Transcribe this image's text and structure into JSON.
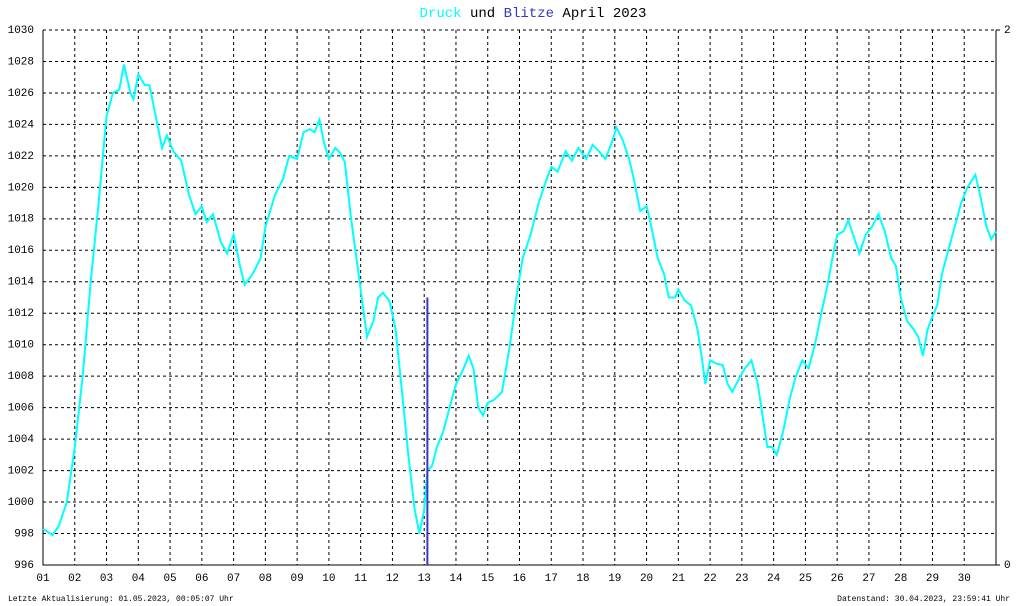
{
  "chart_data": {
    "type": "line",
    "title": [
      "Druck",
      "und",
      "Blitze",
      "April 2023"
    ],
    "footer_left": "Letzte Aktualisierung: 01.05.2023, 00:05:07 Uhr",
    "footer_right": "Datenstand: 30.04.2023, 23:59:41 Uhr",
    "xlim": [
      1,
      31
    ],
    "xticks": [
      {
        "value": 1,
        "label": "01"
      },
      {
        "value": 2,
        "label": "02"
      },
      {
        "value": 3,
        "label": "03"
      },
      {
        "value": 4,
        "label": "04"
      },
      {
        "value": 5,
        "label": "05"
      },
      {
        "value": 6,
        "label": "06"
      },
      {
        "value": 7,
        "label": "07"
      },
      {
        "value": 8,
        "label": "08"
      },
      {
        "value": 9,
        "label": "09"
      },
      10,
      11,
      12,
      13,
      14,
      15,
      16,
      17,
      18,
      19,
      20,
      21,
      22,
      23,
      24,
      25,
      26,
      27,
      28,
      29,
      30
    ],
    "ylim": [
      996,
      1030
    ],
    "yticks": [
      996,
      998,
      1000,
      1002,
      1004,
      1006,
      1008,
      1010,
      1012,
      1014,
      1016,
      1018,
      1020,
      1022,
      1024,
      1026,
      1028,
      1030
    ],
    "y2lim": [
      0,
      2
    ],
    "y2ticks": [
      0,
      2
    ],
    "grid": true,
    "series": [
      {
        "name": "Druck",
        "color": "#00ffff",
        "type": "line",
        "x": [
          1.0,
          1.3,
          1.5,
          1.75,
          2.0,
          2.25,
          2.5,
          2.75,
          3.0,
          3.2,
          3.4,
          3.55,
          3.75,
          3.85,
          4.0,
          4.2,
          4.35,
          4.5,
          4.75,
          4.9,
          5.1,
          5.35,
          5.6,
          5.8,
          6.0,
          6.15,
          6.35,
          6.6,
          6.8,
          7.0,
          7.2,
          7.35,
          7.6,
          7.85,
          8.0,
          8.3,
          8.55,
          8.75,
          9.0,
          9.2,
          9.4,
          9.55,
          9.7,
          9.85,
          10.0,
          10.2,
          10.35,
          10.5,
          10.7,
          10.9,
          11.1,
          11.2,
          11.4,
          11.55,
          11.7,
          11.9,
          12.1,
          12.3,
          12.5,
          12.7,
          12.85,
          13.0,
          13.1,
          13.25,
          13.4,
          13.6,
          13.8,
          14.0,
          14.2,
          14.4,
          14.55,
          14.7,
          14.85,
          15.0,
          15.2,
          15.45,
          15.7,
          15.9,
          16.1,
          16.35,
          16.6,
          16.85,
          17.0,
          17.2,
          17.45,
          17.65,
          17.85,
          18.1,
          18.3,
          18.5,
          18.7,
          18.9,
          19.05,
          19.25,
          19.45,
          19.6,
          19.8,
          20.0,
          20.15,
          20.35,
          20.55,
          20.7,
          20.9,
          21.0,
          21.2,
          21.4,
          21.6,
          21.75,
          21.85,
          22.0,
          22.2,
          22.4,
          22.55,
          22.7,
          22.9,
          23.1,
          23.3,
          23.5,
          23.65,
          23.8,
          23.95,
          24.1,
          24.3,
          24.5,
          24.7,
          24.9,
          25.1,
          25.3,
          25.5,
          25.7,
          25.85,
          26.0,
          26.2,
          26.35,
          26.5,
          26.7,
          26.9,
          27.1,
          27.3,
          27.5,
          27.7,
          27.85,
          28.0,
          28.2,
          28.4,
          28.55,
          28.7,
          28.85,
          29.0,
          29.15,
          29.3,
          29.5,
          29.7,
          29.9,
          30.1,
          30.35,
          30.5,
          30.7,
          30.85,
          31.0
        ],
        "values": [
          998.3,
          997.9,
          998.5,
          1000,
          1003.5,
          1008,
          1014,
          1019,
          1024.5,
          1026,
          1026.2,
          1027.8,
          1026,
          1025.6,
          1027.2,
          1026.5,
          1026.5,
          1025,
          1022.5,
          1023.3,
          1022.3,
          1021.7,
          1019.5,
          1018.3,
          1018.8,
          1017.8,
          1018.3,
          1016.5,
          1015.8,
          1017,
          1015,
          1013.8,
          1014.5,
          1015.5,
          1017.5,
          1019.5,
          1020.5,
          1022,
          1021.8,
          1023.5,
          1023.7,
          1023.5,
          1024.3,
          1022.8,
          1021.8,
          1022.5,
          1022.2,
          1021.6,
          1018,
          1015,
          1012,
          1010.5,
          1011.5,
          1013,
          1013.3,
          1012.8,
          1011,
          1007,
          1003,
          999.5,
          998,
          999.5,
          1002,
          1002.3,
          1003.5,
          1004.5,
          1006,
          1007.5,
          1008.3,
          1009.3,
          1008.5,
          1006,
          1005.5,
          1006.3,
          1006.5,
          1007,
          1010,
          1013,
          1015.5,
          1017,
          1019,
          1020.5,
          1021.3,
          1021,
          1022.3,
          1021.7,
          1022.5,
          1021.8,
          1022.7,
          1022.3,
          1021.8,
          1022.8,
          1023.8,
          1023,
          1021.8,
          1020.5,
          1018.5,
          1018.8,
          1017.5,
          1015.5,
          1014.5,
          1013,
          1013,
          1013.5,
          1012.8,
          1012.5,
          1011,
          1009,
          1007.5,
          1009,
          1008.8,
          1008.7,
          1007.5,
          1007,
          1007.8,
          1008.5,
          1009,
          1007.5,
          1005.5,
          1003.5,
          1003.5,
          1003,
          1004.5,
          1006.5,
          1008,
          1009,
          1008.5,
          1010,
          1012,
          1013.8,
          1015.5,
          1017,
          1017.2,
          1017.9,
          1017,
          1015.8,
          1017,
          1017.5,
          1018.3,
          1017.2,
          1015.5,
          1015,
          1013,
          1011.5,
          1011,
          1010.5,
          1009.3,
          1011,
          1011.8,
          1012.5,
          1014.5,
          1016,
          1017.5,
          1019,
          1020,
          1020.8,
          1019.5,
          1017.5,
          1016.7,
          1017.2
        ]
      },
      {
        "name": "Blitze",
        "color": "#3838c8",
        "type": "bar",
        "axis": "y2",
        "x": [
          13.1
        ],
        "values": [
          1
        ]
      }
    ]
  }
}
